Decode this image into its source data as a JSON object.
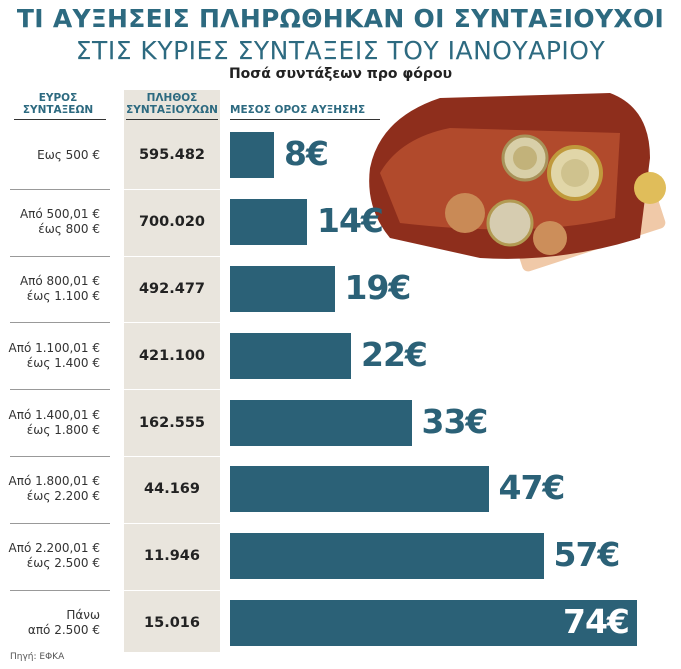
{
  "title": "ΤΙ ΑΥΞΗΣΕΙΣ ΠΛΗΡΩΘΗΚΑΝ ΟΙ ΣΥΝΤΑΞΙΟΥΧΟΙ",
  "chart_data": {
    "type": "bar",
    "title": "ΣΤΙΣ ΚΥΡΙΕΣ ΣΥΝΤΑΞΕΙΣ ΤΟΥ ΙΑΝΟΥΑΡΙΟΥ",
    "subtitle": "Ποσά συντάξεων προ φόρου",
    "headers": [
      "ΕΥΡΟΣ\nΣΥΝΤΑΞΕΩΝ",
      "ΠΛΗΘΟΣ\nΣΥΝΤΑΞΙΟΥΧΩΝ",
      "ΜΕΣΟΣ ΟΡΟΣ ΑΥΞΗΣΗΣ"
    ],
    "categories": [
      "Εως 500 €",
      "Από 500,01 €\nέως 800 €",
      "Από 800,01 €\nέως 1.100 €",
      "Από 1.100,01 €\nέως 1.400 €",
      "Από 1.400,01 €\nέως 1.800 €",
      "Από 1.800,01 €\nέως 2.200 €",
      "Από 2.200,01 €\nέως 2.500 €",
      "Πάνω\nαπό 2.500 €"
    ],
    "counts": [
      "595.482",
      "700.020",
      "492.477",
      "421.100",
      "162.555",
      "44.169",
      "11.946",
      "15.016"
    ],
    "values": [
      8,
      14,
      19,
      22,
      33,
      47,
      57,
      74
    ],
    "value_labels": [
      "8€",
      "14€",
      "19€",
      "22€",
      "33€",
      "47€",
      "57€",
      "74€"
    ],
    "color": "#2b6177",
    "source": "Πηγή: ΕΦΚΑ"
  }
}
